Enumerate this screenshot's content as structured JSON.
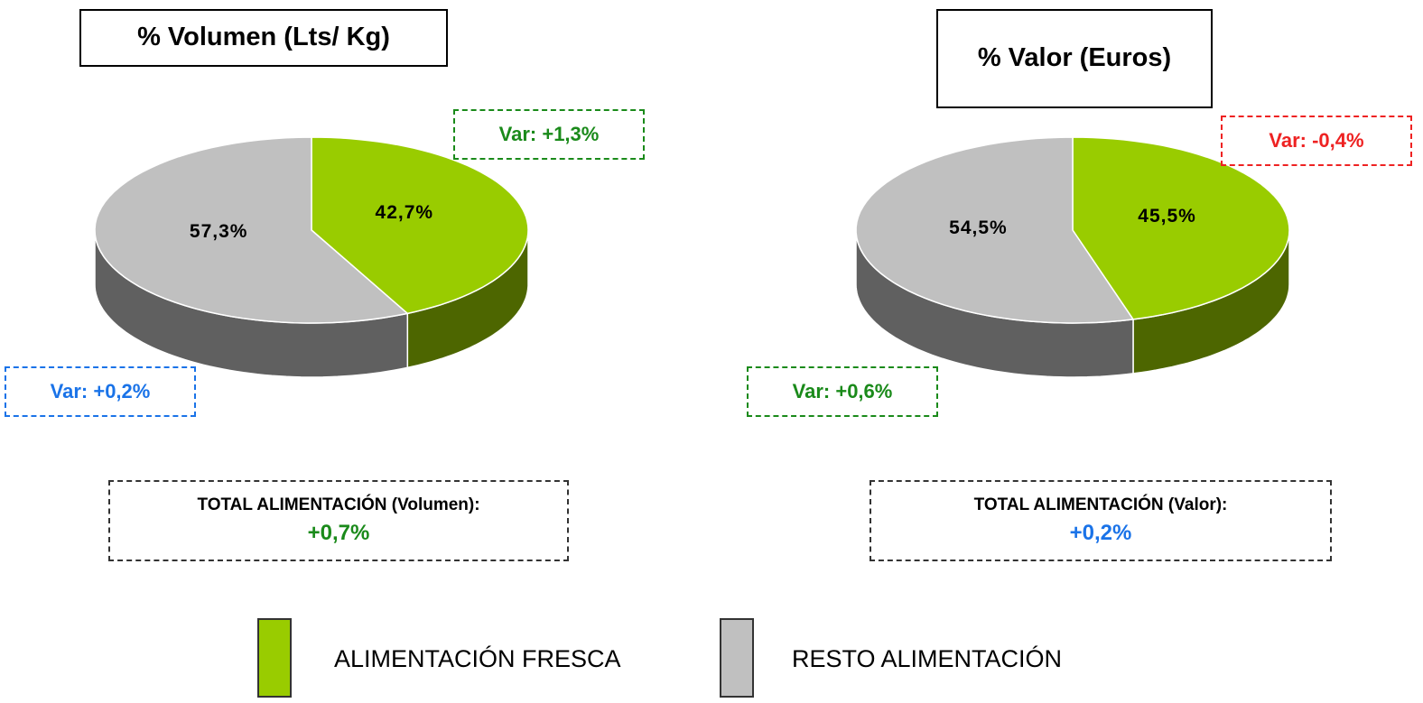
{
  "chart_data": [
    {
      "type": "pie",
      "title": "% Volumen (Lts/ Kg)",
      "categories": [
        "ALIMENTACIÓN FRESCA",
        "RESTO ALIMENTACIÓN"
      ],
      "values": [
        42.7,
        57.3
      ],
      "value_labels": [
        "42,7%",
        "57,3%"
      ],
      "colors": [
        "#99cc00",
        "#c0c0c0"
      ],
      "side_colors": [
        "#4d6600",
        "#606060"
      ],
      "annotations": [
        {
          "text": "Var: +1,3%",
          "color": "#1a8a1a"
        },
        {
          "text": "Var: +0,2%",
          "color": "#1a73e8"
        }
      ],
      "total": {
        "label": "TOTAL ALIMENTACIÓN (Volumen):",
        "value": "+0,7%",
        "color": "#1a8a1a"
      }
    },
    {
      "type": "pie",
      "title": "% Valor (Euros)",
      "categories": [
        "ALIMENTACIÓN FRESCA",
        "RESTO ALIMENTACIÓN"
      ],
      "values": [
        45.5,
        54.5
      ],
      "value_labels": [
        "45,5%",
        "54,5%"
      ],
      "colors": [
        "#99cc00",
        "#c0c0c0"
      ],
      "side_colors": [
        "#4d6600",
        "#606060"
      ],
      "annotations": [
        {
          "text": "Var: -0,4%",
          "color": "#ee2222"
        },
        {
          "text": "Var: +0,6%",
          "color": "#1a8a1a"
        }
      ],
      "total": {
        "label": "TOTAL ALIMENTACIÓN (Valor):",
        "value": "+0,2%",
        "color": "#1a73e8"
      }
    }
  ]
}
